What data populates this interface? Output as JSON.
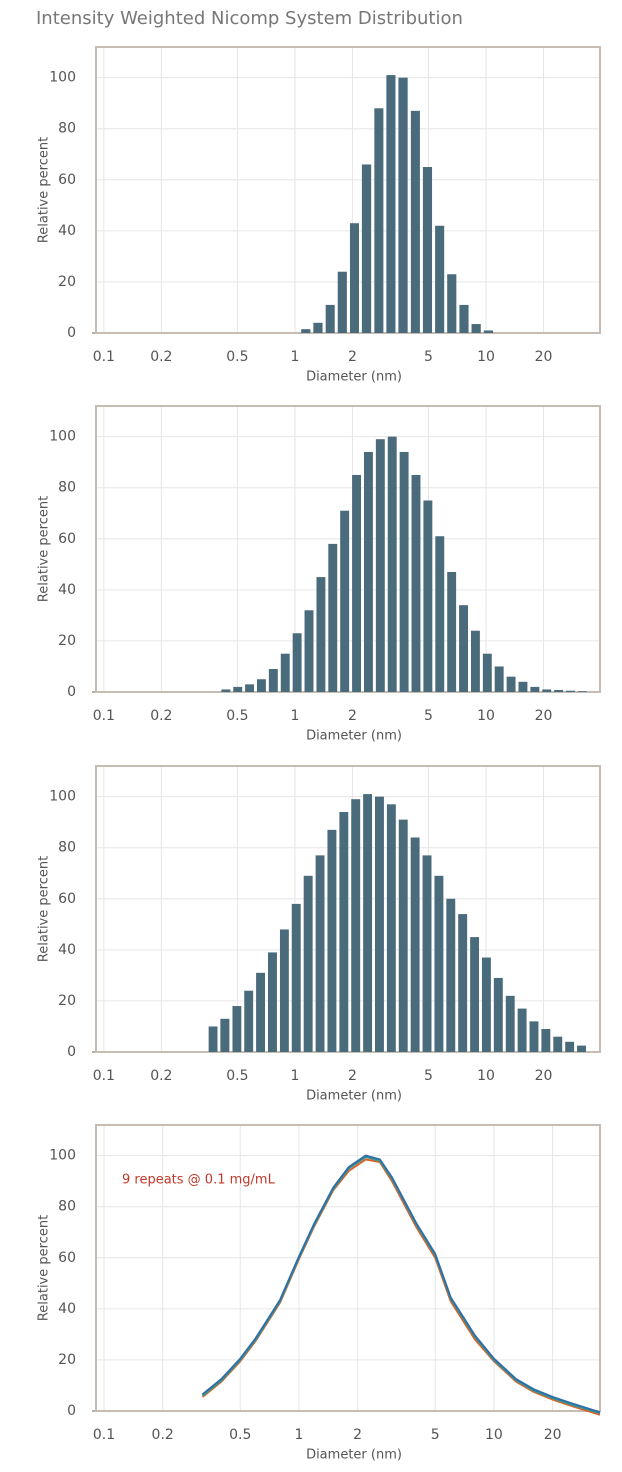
{
  "title": "Intensity Weighted Nicomp System Distribution",
  "chart_data": [
    {
      "type": "bar",
      "color": "#4a6b7c",
      "xlabel": "Diameter (nm)",
      "ylabel": "Relative percent",
      "log_x": true,
      "grid": true,
      "xlim": [
        0.091,
        39.5
      ],
      "ylim": [
        0,
        112
      ],
      "xticks": [
        0.1,
        0.2,
        0.5,
        1,
        2,
        5,
        10,
        20
      ],
      "yticks": [
        0,
        20,
        40,
        60,
        80,
        100
      ],
      "x": [
        1.14,
        1.32,
        1.53,
        1.77,
        2.05,
        2.37,
        2.75,
        3.18,
        3.68,
        4.27,
        4.94,
        5.72,
        6.62,
        7.67,
        8.88,
        10.3
      ],
      "values": [
        1.5,
        4,
        11,
        24,
        43,
        66,
        88,
        101,
        100,
        87,
        65,
        42,
        23,
        11,
        3.5,
        1
      ]
    },
    {
      "type": "bar",
      "color": "#4a6b7c",
      "xlabel": "Diameter (nm)",
      "ylabel": "Relative percent",
      "log_x": true,
      "grid": true,
      "xlim": [
        0.091,
        39.5
      ],
      "ylim": [
        0,
        112
      ],
      "xticks": [
        0.1,
        0.2,
        0.5,
        1,
        2,
        5,
        10,
        20
      ],
      "yticks": [
        0,
        20,
        40,
        60,
        80,
        100
      ],
      "x": [
        0.435,
        0.502,
        0.579,
        0.668,
        0.771,
        0.89,
        1.027,
        1.185,
        1.368,
        1.578,
        1.821,
        2.102,
        2.426,
        2.799,
        3.23,
        3.728,
        4.302,
        4.964,
        5.729,
        6.611,
        7.629,
        8.804,
        10.16,
        11.72,
        13.53,
        15.61,
        18.02,
        20.79,
        23.99,
        27.69,
        31.95
      ],
      "values": [
        1,
        2,
        3,
        5,
        9,
        15,
        23,
        32,
        45,
        58,
        71,
        85,
        94,
        99,
        100,
        94,
        85,
        75,
        61,
        47,
        34,
        24,
        15,
        10,
        6,
        4,
        2,
        1,
        0.8,
        0.5,
        0.3
      ]
    },
    {
      "type": "bar",
      "color": "#4a6b7c",
      "xlabel": "Diameter (nm)",
      "ylabel": "Relative percent",
      "log_x": true,
      "grid": true,
      "xlim": [
        0.091,
        39.5
      ],
      "ylim": [
        0,
        112
      ],
      "xticks": [
        0.1,
        0.2,
        0.5,
        1,
        2,
        5,
        10,
        20
      ],
      "yticks": [
        0,
        20,
        40,
        60,
        80,
        100
      ],
      "x": [
        0.373,
        0.43,
        0.497,
        0.573,
        0.661,
        0.763,
        0.881,
        1.016,
        1.173,
        1.354,
        1.562,
        1.803,
        2.08,
        2.401,
        2.77,
        3.197,
        3.689,
        4.257,
        4.913,
        5.67,
        6.543,
        7.55,
        8.713,
        10.05,
        11.6,
        13.39,
        15.45,
        17.83,
        20.57,
        23.74,
        27.4,
        31.62
      ],
      "values": [
        10,
        13,
        18,
        24,
        31,
        39,
        48,
        58,
        69,
        77,
        87,
        94,
        99,
        101,
        100,
        97,
        91,
        84,
        77,
        69,
        60,
        54,
        45,
        37,
        29,
        22,
        17,
        12,
        9,
        6,
        4,
        2.5
      ]
    },
    {
      "type": "line",
      "xlabel": "Diameter (nm)",
      "ylabel": "Relative percent",
      "annotation": "9 repeats @ 0.1 mg/mL",
      "log_x": true,
      "grid": true,
      "xlim": [
        0.091,
        35
      ],
      "ylim": [
        0,
        112
      ],
      "xticks": [
        0.1,
        0.2,
        0.5,
        1,
        2,
        5,
        10,
        20
      ],
      "yticks": [
        0,
        20,
        40,
        60,
        80,
        100
      ],
      "x": [
        0.32,
        0.4,
        0.5,
        0.6,
        0.7,
        0.8,
        1,
        1.2,
        1.5,
        1.8,
        2.2,
        2.6,
        3,
        4,
        5,
        6,
        8,
        10,
        13,
        16,
        20,
        25,
        35
      ],
      "series": [
        {
          "color": "#d9622b",
          "values": [
            5.5,
            11.5,
            19.5,
            27.5,
            35.5,
            42.5,
            59.5,
            72.5,
            86.5,
            94,
            98.5,
            97.5,
            90,
            72,
            60,
            43,
            28,
            19.5,
            11.5,
            7.5,
            4.5,
            2,
            -1.5
          ]
        },
        {
          "color": "#3a9a8c",
          "values": [
            6,
            12,
            20,
            28,
            36,
            43,
            60,
            73,
            87,
            95,
            99.5,
            98,
            91,
            73,
            61,
            44,
            29,
            20,
            12,
            8,
            5,
            2.5,
            -0.8
          ]
        },
        {
          "color": "#2f6fa8",
          "values": [
            6.5,
            12.5,
            20.5,
            28.5,
            36.5,
            43.5,
            60.5,
            73.5,
            87.5,
            95.5,
            100,
            98.5,
            91.5,
            73.5,
            61.5,
            44.5,
            29.5,
            20.5,
            12.5,
            8.5,
            5.5,
            3,
            -0.5
          ]
        }
      ]
    }
  ]
}
